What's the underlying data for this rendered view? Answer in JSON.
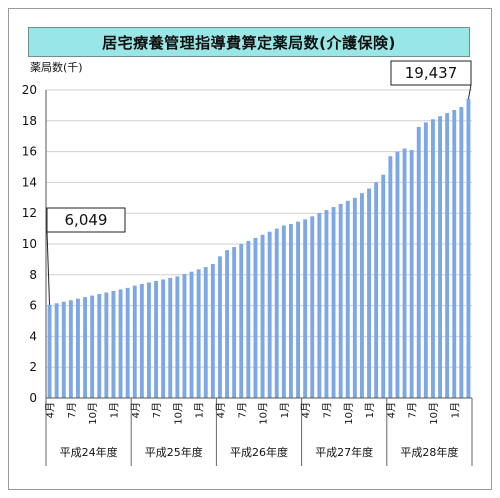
{
  "chart_data": {
    "type": "bar",
    "title": "居宅療養管理指導費算定薬局数(介護保険)",
    "ylabel": "薬局数(千)",
    "ylim": [
      0,
      20
    ],
    "yticks": [
      0,
      2,
      4,
      6,
      8,
      10,
      12,
      14,
      16,
      18,
      20
    ],
    "grid": "horizontal",
    "bar_color": "#7ea7e6",
    "month_labels": [
      "4月",
      "7月",
      "10月",
      "1月"
    ],
    "fiscal_years": [
      "平成24年度",
      "平成25年度",
      "平成26年度",
      "平成27年度",
      "平成28年度"
    ],
    "values": [
      6.05,
      6.15,
      6.25,
      6.35,
      6.45,
      6.55,
      6.65,
      6.75,
      6.85,
      6.95,
      7.05,
      7.15,
      7.3,
      7.4,
      7.5,
      7.6,
      7.7,
      7.8,
      7.9,
      8.05,
      8.2,
      8.35,
      8.5,
      8.7,
      9.2,
      9.6,
      9.8,
      10.0,
      10.2,
      10.4,
      10.6,
      10.8,
      11.0,
      11.2,
      11.3,
      11.45,
      11.6,
      11.8,
      12.0,
      12.2,
      12.4,
      12.6,
      12.8,
      13.0,
      13.3,
      13.6,
      14.0,
      14.5,
      15.7,
      16.0,
      16.2,
      16.1,
      17.6,
      17.9,
      18.1,
      18.3,
      18.5,
      18.7,
      18.9,
      19.437
    ],
    "annotations": [
      {
        "label": "6,049",
        "index": 0
      },
      {
        "label": "19,437",
        "index": 59
      }
    ]
  }
}
